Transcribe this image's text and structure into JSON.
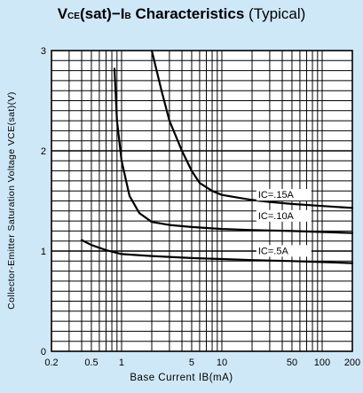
{
  "chart_data": {
    "type": "line",
    "title": {
      "symbol": "V",
      "symbol_sub": "CE",
      "rest": "(sat)−I",
      "rest_sub": "B",
      "main": " Characteristics",
      "note": " (Typical)"
    },
    "xlabel": "Base Current IB(mA)",
    "ylabel": "Collector-Emitter Saturation Voltage VCE(sat)(V)",
    "x_scale": "log",
    "xlim": [
      0.2,
      200
    ],
    "ylim": [
      0,
      3
    ],
    "x_ticks": [
      "0.2",
      "0.5",
      "1",
      "5",
      "10",
      "50",
      "100",
      "200"
    ],
    "y_ticks": [
      "0",
      "1",
      "2",
      "3"
    ],
    "grid": true,
    "series": [
      {
        "name": "IC=.15A",
        "x": [
          2.0,
          2.5,
          3,
          4,
          5,
          6,
          8,
          10,
          15,
          20,
          30,
          50,
          100,
          200
        ],
        "y": [
          3.0,
          2.6,
          2.3,
          2.0,
          1.8,
          1.68,
          1.6,
          1.56,
          1.53,
          1.51,
          1.49,
          1.47,
          1.45,
          1.43
        ]
      },
      {
        "name": "IC=.10A",
        "x": [
          0.85,
          0.9,
          1.0,
          1.2,
          1.5,
          2.0,
          3,
          5,
          10,
          20,
          50,
          100,
          200
        ],
        "y": [
          2.82,
          2.3,
          1.9,
          1.55,
          1.38,
          1.29,
          1.26,
          1.24,
          1.22,
          1.21,
          1.2,
          1.19,
          1.18
        ]
      },
      {
        "name": "IC=.5A",
        "x": [
          0.4,
          0.5,
          0.7,
          1.0,
          2.0,
          5,
          10,
          20,
          50,
          100,
          200
        ],
        "y": [
          1.11,
          1.06,
          1.01,
          0.97,
          0.95,
          0.93,
          0.92,
          0.91,
          0.9,
          0.89,
          0.88
        ]
      }
    ],
    "curve_labels": [
      "IC=.15A",
      "IC=.10A",
      "IC=.5A"
    ]
  }
}
